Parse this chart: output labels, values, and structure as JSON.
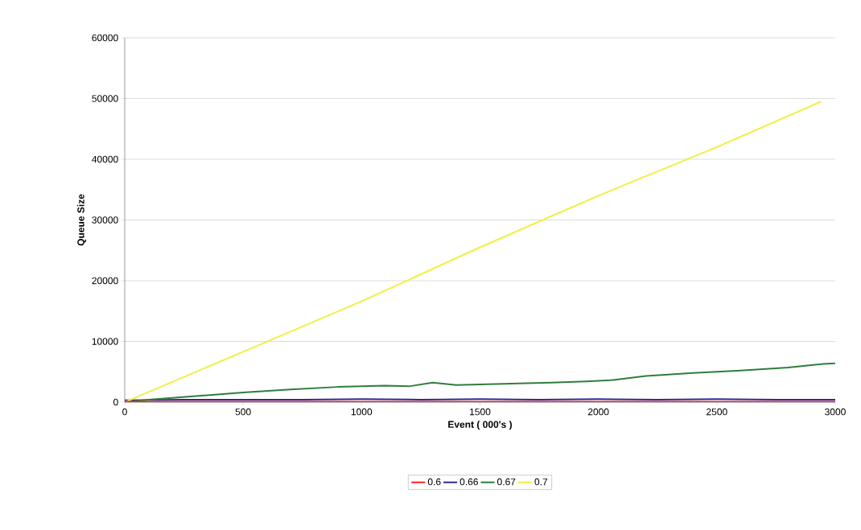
{
  "chart_data": {
    "type": "line",
    "xlabel": "Event ( 000's )",
    "ylabel": "Queue Size",
    "xlim": [
      0,
      3000
    ],
    "ylim": [
      0,
      60000
    ],
    "xticks": [
      0,
      500,
      1000,
      1500,
      2000,
      2500,
      3000
    ],
    "yticks": [
      0,
      10000,
      20000,
      30000,
      40000,
      50000,
      60000
    ],
    "grid": "y",
    "legend": "bottom",
    "marker": "none",
    "line_style": "solid",
    "series": [
      {
        "name": "0.6",
        "color": "#ff2020",
        "x": [
          0,
          500,
          1000,
          1500,
          2000,
          2500,
          3000
        ],
        "values": [
          100,
          100,
          100,
          100,
          100,
          100,
          100
        ]
      },
      {
        "name": "0.66",
        "color": "#2a2a9a",
        "x": [
          0,
          250,
          500,
          750,
          1000,
          1250,
          1500,
          1750,
          2000,
          2250,
          2500,
          2750,
          3000
        ],
        "values": [
          300,
          400,
          400,
          400,
          500,
          400,
          500,
          400,
          500,
          400,
          500,
          400,
          400
        ]
      },
      {
        "name": "0.67",
        "color": "#2e7d3e",
        "x": [
          0,
          100,
          300,
          500,
          700,
          900,
          1100,
          1200,
          1300,
          1400,
          1600,
          1800,
          1950,
          2050,
          2200,
          2400,
          2600,
          2800,
          2950,
          3000
        ],
        "values": [
          0,
          400,
          1000,
          1600,
          2100,
          2500,
          2700,
          2600,
          3200,
          2800,
          3000,
          3200,
          3400,
          3600,
          4300,
          4800,
          5200,
          5700,
          6300,
          6400
        ]
      },
      {
        "name": "0.7",
        "color": "#f0f040",
        "x": [
          0,
          500,
          1000,
          1500,
          2000,
          2500,
          2940
        ],
        "values": [
          0,
          8300,
          16600,
          25500,
          34000,
          42000,
          49500
        ]
      }
    ]
  }
}
